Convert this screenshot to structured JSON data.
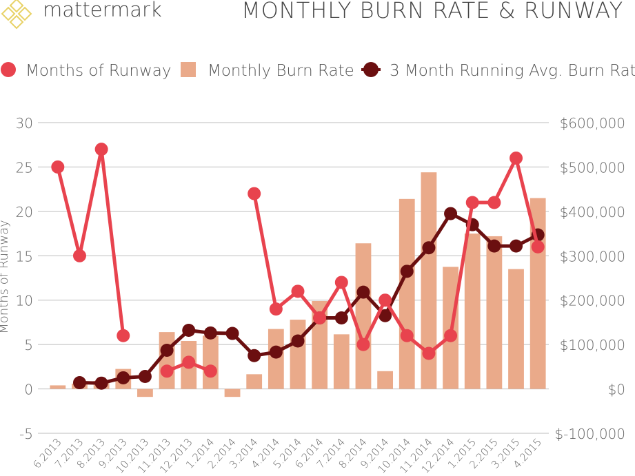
{
  "brand": {
    "name": "mattermark",
    "logo_icon": "diamond-lattice-icon",
    "logo_color": "#e8d267"
  },
  "chart_data": {
    "type": "bar+line",
    "title": "MONTHLY BURN RATE & RUNWAY",
    "ylabel_left": "Months of Runway",
    "categories": [
      "6.2013",
      "7.2013",
      "8.2013",
      "9.2013",
      "10.2013",
      "11.2013",
      "12.2013",
      "1.2014",
      "2.2014",
      "3.2014",
      "4.2014",
      "5.2014",
      "6.2014",
      "7.2014",
      "8.2014",
      "9.2014",
      "10.2014",
      "11.2014",
      "12.2014",
      "1.2015",
      "2.2015",
      "3.2015",
      "4.2015"
    ],
    "y_left": {
      "min": -5,
      "max": 30,
      "step": 5,
      "ticks": [
        "-5",
        "0",
        "5",
        "10",
        "15",
        "20",
        "25",
        "30"
      ]
    },
    "y_right": {
      "min": -100000,
      "max": 600000,
      "step": 100000,
      "ticks": [
        "$-100,000",
        "$0",
        "$100,000",
        "$200,000",
        "$300,000",
        "$400,000",
        "$500,000",
        "$600,000"
      ]
    },
    "grid": true,
    "legend_position": "top",
    "series": [
      {
        "name": "Months of Runway",
        "kind": "line",
        "axis": "left",
        "color": "#e8434e",
        "values": [
          25,
          15,
          27,
          6,
          null,
          2,
          3,
          2,
          null,
          22,
          9,
          11,
          8,
          12,
          5,
          10,
          6,
          4,
          6,
          21,
          21,
          26,
          16
        ]
      },
      {
        "name": "Monthly Burn Rate",
        "kind": "bar",
        "axis": "right",
        "color": "#eaaa8a",
        "values": [
          8000,
          12000,
          18000,
          45000,
          -18000,
          128000,
          108000,
          120000,
          -18000,
          33000,
          135000,
          156000,
          198000,
          123000,
          328000,
          40000,
          428000,
          488000,
          275000,
          350000,
          344000,
          270000,
          430000
        ]
      },
      {
        "name": "3 Month Running Avg. Burn Rate",
        "kind": "line",
        "axis": "right",
        "color": "#6b0f10",
        "values": [
          null,
          14000,
          13000,
          25000,
          28000,
          87000,
          132000,
          126000,
          125000,
          75000,
          83000,
          108000,
          160000,
          160000,
          218000,
          165000,
          265000,
          318000,
          395000,
          370000,
          322000,
          322000,
          347000
        ]
      }
    ]
  }
}
